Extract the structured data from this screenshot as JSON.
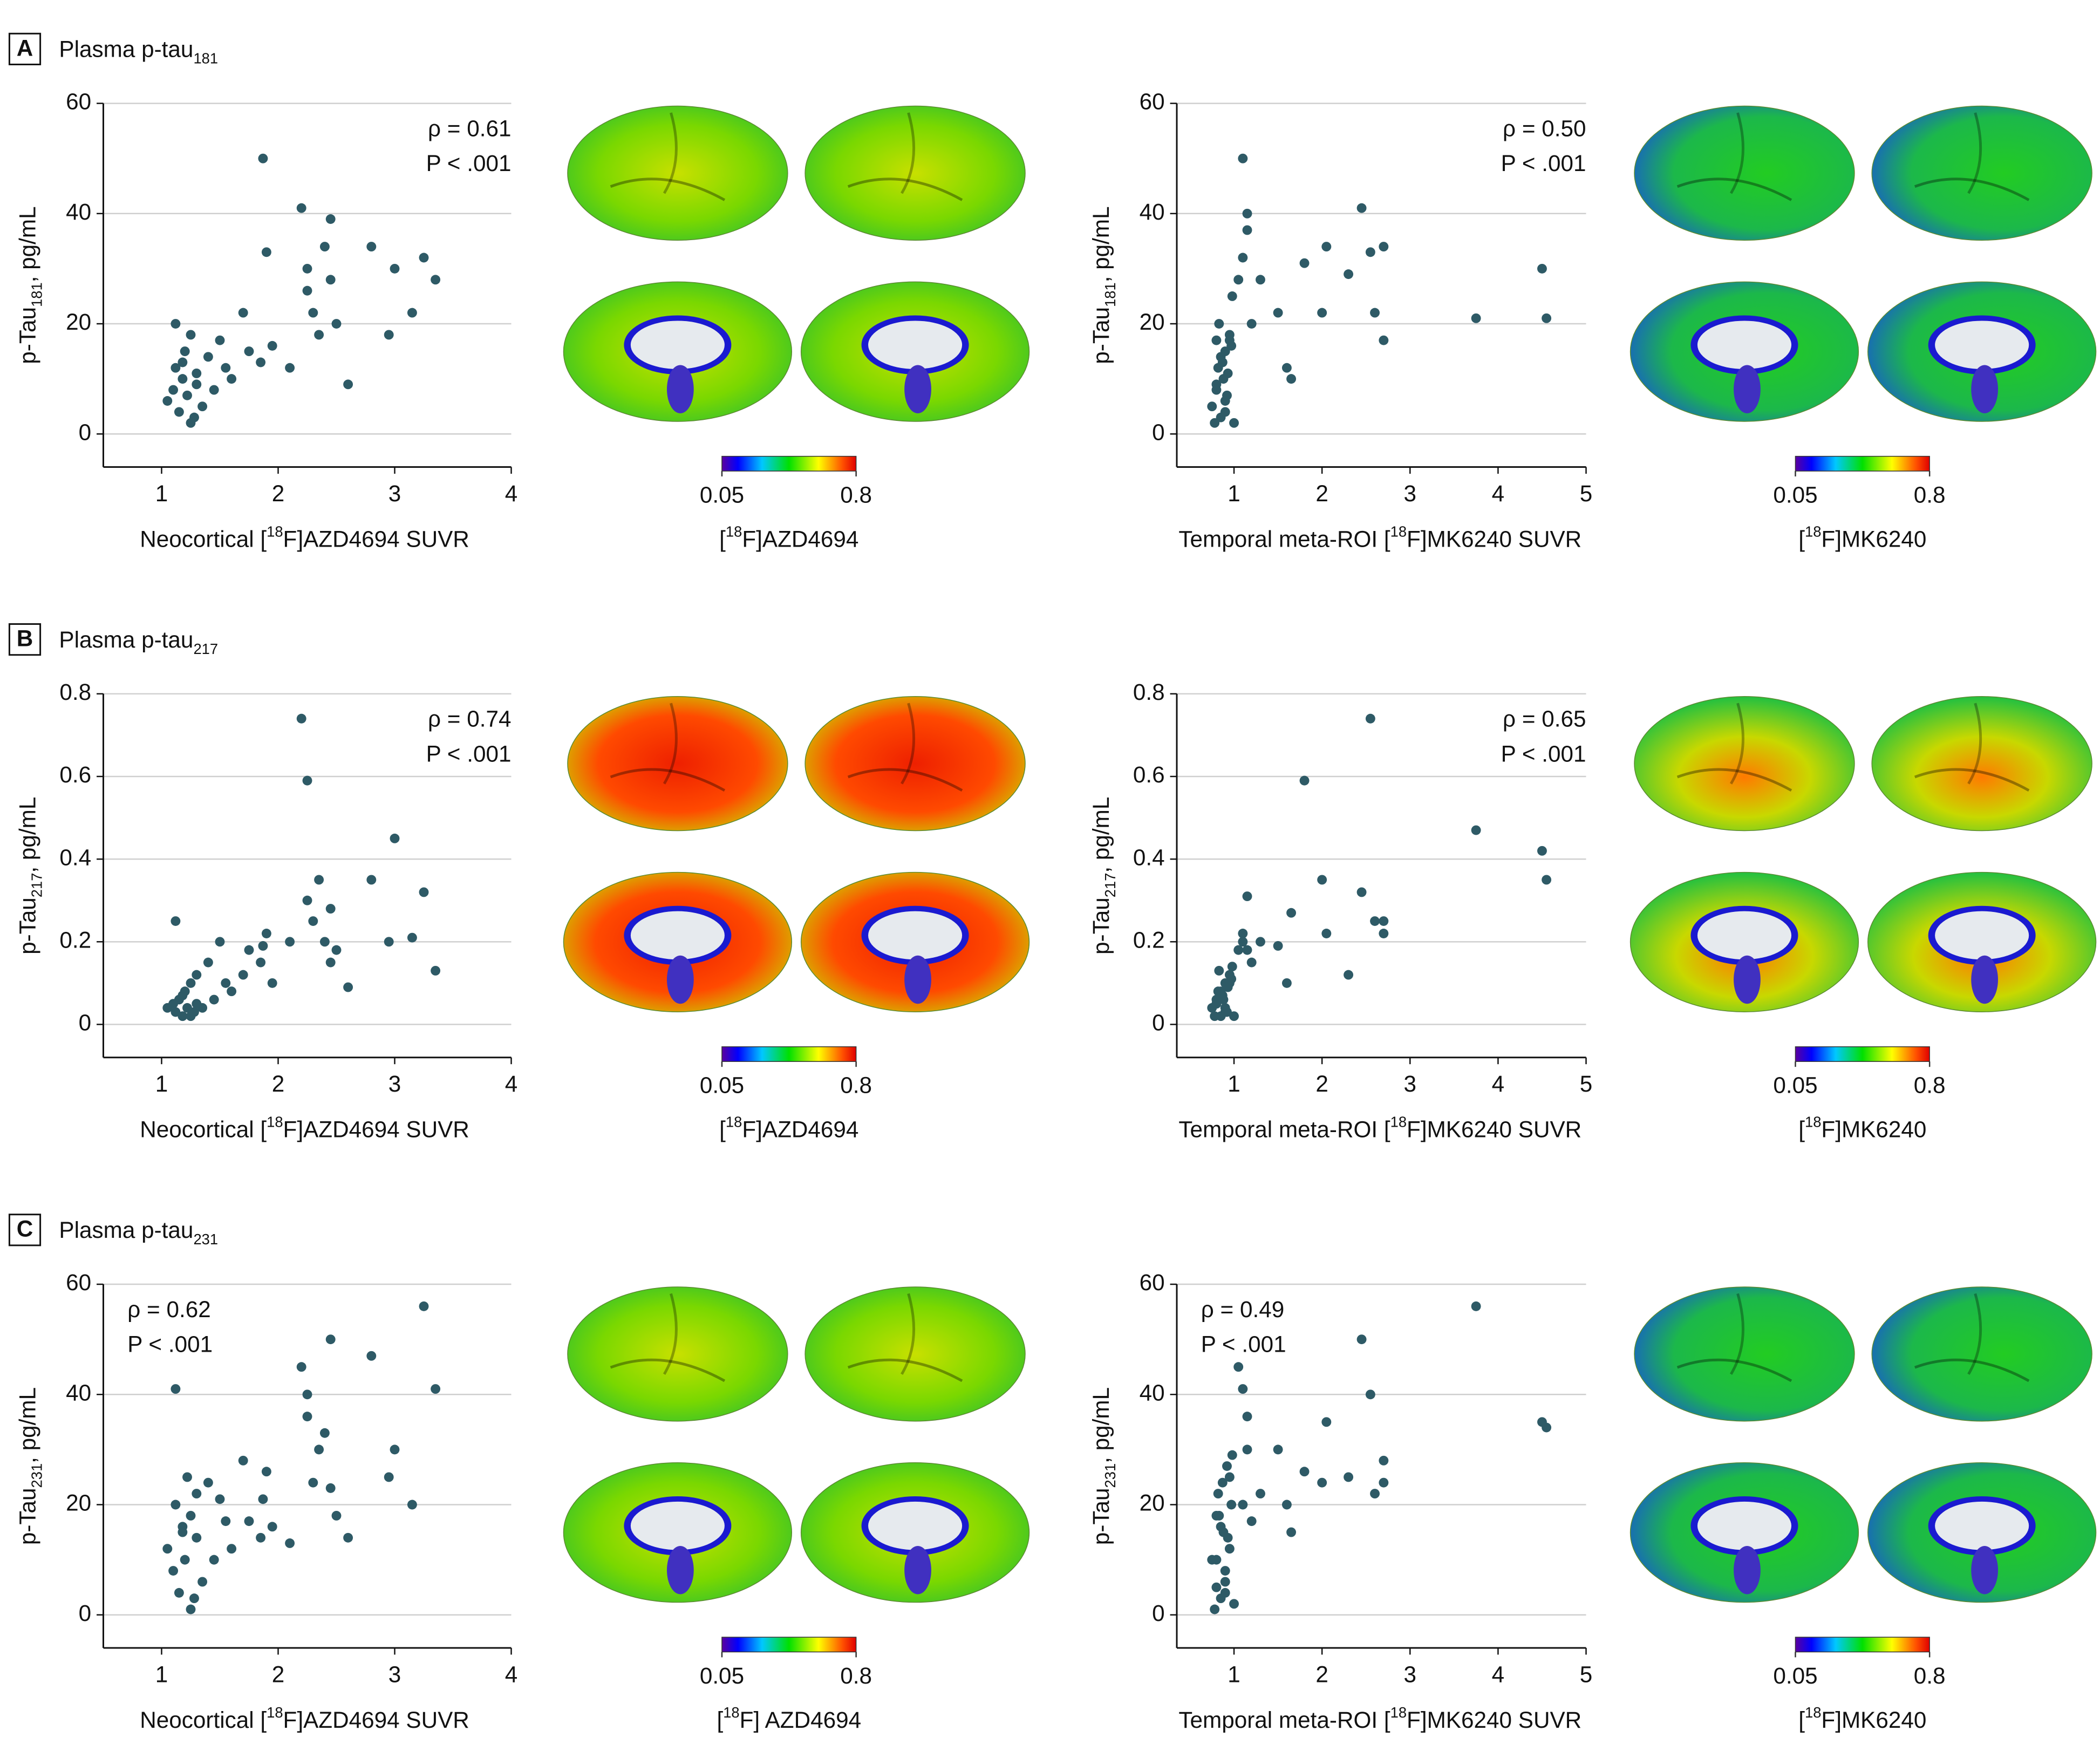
{
  "panels": [
    {
      "letter": "A",
      "title": [
        "Plasma p-tau",
        "181"
      ]
    },
    {
      "letter": "B",
      "title": [
        "Plasma p-tau",
        "217"
      ]
    },
    {
      "letter": "C",
      "title": [
        "Plasma p-tau",
        "231"
      ]
    }
  ],
  "chart_data": [
    {
      "type": "scatter",
      "color": "#2e5a66",
      "xlabel": [
        "Neocortical [",
        "18",
        "F]AZD4694 SUVR"
      ],
      "ylabel": [
        "p-Tau",
        "181",
        ", pg/mL"
      ],
      "annotation": [
        "ρ = 0.61",
        "P < .001"
      ],
      "annotation_loc": "upper right",
      "xlim": [
        0.5,
        4
      ],
      "xticks": [
        1,
        2,
        3,
        4
      ],
      "ylim": [
        -6,
        60
      ],
      "yticks": [
        0,
        20,
        40,
        60
      ],
      "grid": true,
      "x": [
        1.05,
        1.1,
        1.12,
        1.15,
        1.18,
        1.2,
        1.22,
        1.25,
        1.28,
        1.3,
        1.12,
        1.18,
        1.25,
        1.3,
        1.35,
        1.4,
        1.45,
        1.5,
        1.55,
        1.6,
        1.7,
        1.75,
        1.85,
        1.9,
        1.95,
        2.1,
        2.2,
        2.25,
        2.3,
        2.35,
        2.4,
        2.45,
        2.5,
        2.6,
        2.8,
        2.95,
        3.0,
        3.15,
        3.25,
        3.35,
        1.87,
        2.25,
        2.45
      ],
      "values": [
        6,
        8,
        12,
        4,
        10,
        15,
        7,
        18,
        3,
        9,
        20,
        13,
        2,
        11,
        5,
        14,
        8,
        17,
        12,
        10,
        22,
        15,
        13,
        33,
        16,
        12,
        41,
        30,
        22,
        18,
        34,
        28,
        20,
        9,
        34,
        18,
        30,
        22,
        32,
        28,
        50,
        26,
        39
      ],
      "colorbar": {
        "ticks": [
          0.05,
          0.8
        ],
        "label": [
          "[",
          "18",
          "F]AZD4694"
        ]
      }
    },
    {
      "type": "scatter",
      "color": "#2e5a66",
      "xlabel": [
        "Temporal meta-ROI [",
        "18",
        "F]MK6240 SUVR"
      ],
      "ylabel": [
        "p-Tau",
        "181",
        ", pg/mL"
      ],
      "annotation": [
        "ρ = 0.50",
        "P < .001"
      ],
      "annotation_loc": "upper right",
      "xlim": [
        0.35,
        5
      ],
      "xticks": [
        1,
        2,
        3,
        4,
        5
      ],
      "ylim": [
        -6,
        60
      ],
      "yticks": [
        0,
        20,
        40,
        60
      ],
      "grid": true,
      "x": [
        0.75,
        0.8,
        0.82,
        0.85,
        0.88,
        0.9,
        0.92,
        0.95,
        0.78,
        0.83,
        0.87,
        0.9,
        0.93,
        0.97,
        0.8,
        0.85,
        0.9,
        0.95,
        1.0,
        1.05,
        1.1,
        1.15,
        1.2,
        1.3,
        1.5,
        1.6,
        1.65,
        1.8,
        2.0,
        2.05,
        2.3,
        2.45,
        2.55,
        2.6,
        2.7,
        2.7,
        3.75,
        4.5,
        4.55,
        1.1,
        1.15,
        0.8,
        0.98
      ],
      "values": [
        5,
        8,
        12,
        3,
        10,
        15,
        7,
        18,
        2,
        20,
        13,
        6,
        11,
        16,
        9,
        14,
        4,
        17,
        2,
        28,
        50,
        40,
        20,
        28,
        22,
        12,
        10,
        31,
        22,
        34,
        29,
        41,
        33,
        22,
        17,
        34,
        21,
        30,
        21,
        32,
        37,
        17,
        25
      ],
      "colorbar": {
        "ticks": [
          0.05,
          0.8
        ],
        "label": [
          "[",
          "18",
          "F]MK6240"
        ]
      }
    },
    {
      "type": "scatter",
      "color": "#2e5a66",
      "xlabel": [
        "Neocortical [",
        "18",
        "F]AZD4694 SUVR"
      ],
      "ylabel": [
        "p-Tau",
        "217",
        ", pg/mL"
      ],
      "annotation": [
        "ρ = 0.74",
        "P < .001"
      ],
      "annotation_loc": "upper right",
      "xlim": [
        0.5,
        4
      ],
      "xticks": [
        1,
        2,
        3,
        4
      ],
      "ylim": [
        -0.08,
        0.8
      ],
      "yticks": [
        0,
        0.2,
        0.4,
        0.6,
        0.8
      ],
      "grid": true,
      "x": [
        1.05,
        1.1,
        1.12,
        1.15,
        1.18,
        1.2,
        1.22,
        1.25,
        1.28,
        1.3,
        1.12,
        1.18,
        1.25,
        1.3,
        1.35,
        1.4,
        1.45,
        1.5,
        1.55,
        1.6,
        1.7,
        1.75,
        1.85,
        1.9,
        1.95,
        2.1,
        2.2,
        2.25,
        2.3,
        2.35,
        2.4,
        2.45,
        2.5,
        2.6,
        2.8,
        2.95,
        3.0,
        3.15,
        3.25,
        3.35,
        1.87,
        2.25,
        2.45
      ],
      "values": [
        0.04,
        0.05,
        0.03,
        0.06,
        0.02,
        0.08,
        0.04,
        0.1,
        0.03,
        0.05,
        0.25,
        0.07,
        0.02,
        0.12,
        0.04,
        0.15,
        0.06,
        0.2,
        0.1,
        0.08,
        0.12,
        0.18,
        0.15,
        0.22,
        0.1,
        0.2,
        0.74,
        0.3,
        0.25,
        0.35,
        0.2,
        0.28,
        0.18,
        0.09,
        0.35,
        0.2,
        0.45,
        0.21,
        0.32,
        0.13,
        0.19,
        0.59,
        0.15
      ],
      "colorbar": {
        "ticks": [
          0.05,
          0.8
        ],
        "label": [
          "[",
          "18",
          "F]AZD4694"
        ]
      }
    },
    {
      "type": "scatter",
      "color": "#2e5a66",
      "xlabel": [
        "Temporal meta-ROI [",
        "18",
        "F]MK6240 SUVR"
      ],
      "ylabel": [
        "p-Tau",
        "217",
        ", pg/mL"
      ],
      "annotation": [
        "ρ = 0.65",
        "P < .001"
      ],
      "annotation_loc": "upper right",
      "xlim": [
        0.35,
        5
      ],
      "xticks": [
        1,
        2,
        3,
        4,
        5
      ],
      "ylim": [
        -0.08,
        0.8
      ],
      "yticks": [
        0,
        0.2,
        0.4,
        0.6,
        0.8
      ],
      "grid": true,
      "x": [
        0.75,
        0.8,
        0.82,
        0.85,
        0.88,
        0.9,
        0.92,
        0.95,
        0.78,
        0.83,
        0.87,
        0.9,
        0.93,
        0.97,
        0.8,
        0.85,
        0.9,
        0.95,
        1.0,
        1.05,
        1.1,
        1.15,
        1.2,
        1.3,
        1.5,
        1.6,
        1.65,
        1.8,
        2.0,
        2.05,
        2.3,
        2.45,
        2.55,
        2.6,
        2.7,
        2.7,
        3.75,
        4.5,
        4.55,
        1.1,
        1.15,
        0.8,
        0.98
      ],
      "values": [
        0.04,
        0.05,
        0.08,
        0.02,
        0.06,
        0.1,
        0.03,
        0.12,
        0.02,
        0.13,
        0.07,
        0.04,
        0.09,
        0.11,
        0.05,
        0.08,
        0.03,
        0.1,
        0.02,
        0.18,
        0.22,
        0.31,
        0.15,
        0.2,
        0.19,
        0.1,
        0.27,
        0.59,
        0.35,
        0.22,
        0.12,
        0.32,
        0.74,
        0.25,
        0.22,
        0.25,
        0.47,
        0.42,
        0.35,
        0.2,
        0.18,
        0.06,
        0.14
      ],
      "colorbar": {
        "ticks": [
          0.05,
          0.8
        ],
        "label": [
          "[",
          "18",
          "F]MK6240"
        ]
      }
    },
    {
      "type": "scatter",
      "color": "#2e5a66",
      "xlabel": [
        "Neocortical [",
        "18",
        "F]AZD4694 SUVR"
      ],
      "ylabel": [
        "p-Tau",
        "231",
        ", pg/mL"
      ],
      "annotation": [
        "ρ = 0.62",
        "P < .001"
      ],
      "annotation_loc": "upper left",
      "xlim": [
        0.5,
        4
      ],
      "xticks": [
        1,
        2,
        3,
        4
      ],
      "ylim": [
        -6,
        60
      ],
      "yticks": [
        0,
        20,
        40,
        60
      ],
      "grid": true,
      "x": [
        1.05,
        1.1,
        1.12,
        1.15,
        1.18,
        1.2,
        1.22,
        1.25,
        1.28,
        1.3,
        1.12,
        1.18,
        1.25,
        1.3,
        1.35,
        1.4,
        1.45,
        1.5,
        1.55,
        1.6,
        1.7,
        1.75,
        1.85,
        1.9,
        1.95,
        2.1,
        2.2,
        2.25,
        2.3,
        2.35,
        2.4,
        2.45,
        2.5,
        2.6,
        2.8,
        2.95,
        3.0,
        3.15,
        3.25,
        3.35,
        1.87,
        2.25,
        2.45
      ],
      "values": [
        12,
        8,
        20,
        4,
        15,
        10,
        25,
        18,
        3,
        22,
        41,
        16,
        1,
        14,
        6,
        24,
        10,
        21,
        17,
        12,
        28,
        17,
        14,
        26,
        16,
        13,
        45,
        40,
        24,
        30,
        33,
        23,
        18,
        14,
        47,
        25,
        30,
        20,
        56,
        41,
        21,
        36,
        50
      ],
      "colorbar": {
        "ticks": [
          0.05,
          0.8
        ],
        "label": [
          "[",
          "18",
          "F] AZD4694"
        ]
      }
    },
    {
      "type": "scatter",
      "color": "#2e5a66",
      "xlabel": [
        "Temporal meta-ROI [",
        "18",
        "F]MK6240 SUVR"
      ],
      "ylabel": [
        "p-Tau",
        "231",
        ", pg/mL"
      ],
      "annotation": [
        "ρ = 0.49",
        "P < .001"
      ],
      "annotation_loc": "upper left",
      "xlim": [
        0.35,
        5
      ],
      "xticks": [
        1,
        2,
        3,
        4,
        5
      ],
      "ylim": [
        -6,
        60
      ],
      "yticks": [
        0,
        20,
        40,
        60
      ],
      "grid": true,
      "x": [
        0.75,
        0.8,
        0.82,
        0.85,
        0.88,
        0.9,
        0.92,
        0.95,
        0.78,
        0.83,
        0.87,
        0.9,
        0.93,
        0.97,
        0.8,
        0.85,
        0.9,
        0.95,
        1.0,
        1.05,
        1.1,
        1.15,
        1.2,
        1.3,
        1.5,
        1.6,
        1.65,
        1.8,
        2.0,
        2.05,
        2.3,
        2.45,
        2.55,
        2.6,
        2.7,
        2.7,
        3.75,
        4.5,
        4.55,
        1.1,
        1.15,
        0.8,
        0.98
      ],
      "values": [
        10,
        5,
        22,
        3,
        15,
        8,
        27,
        12,
        1,
        18,
        24,
        6,
        14,
        20,
        10,
        16,
        4,
        25,
        2,
        45,
        41,
        30,
        17,
        22,
        30,
        20,
        15,
        26,
        24,
        35,
        25,
        50,
        40,
        22,
        28,
        24,
        56,
        35,
        34,
        20,
        36,
        18,
        29
      ],
      "colorbar": {
        "ticks": [
          0.05,
          0.8
        ],
        "label": [
          "[",
          "18",
          "F]MK6240"
        ]
      }
    }
  ]
}
